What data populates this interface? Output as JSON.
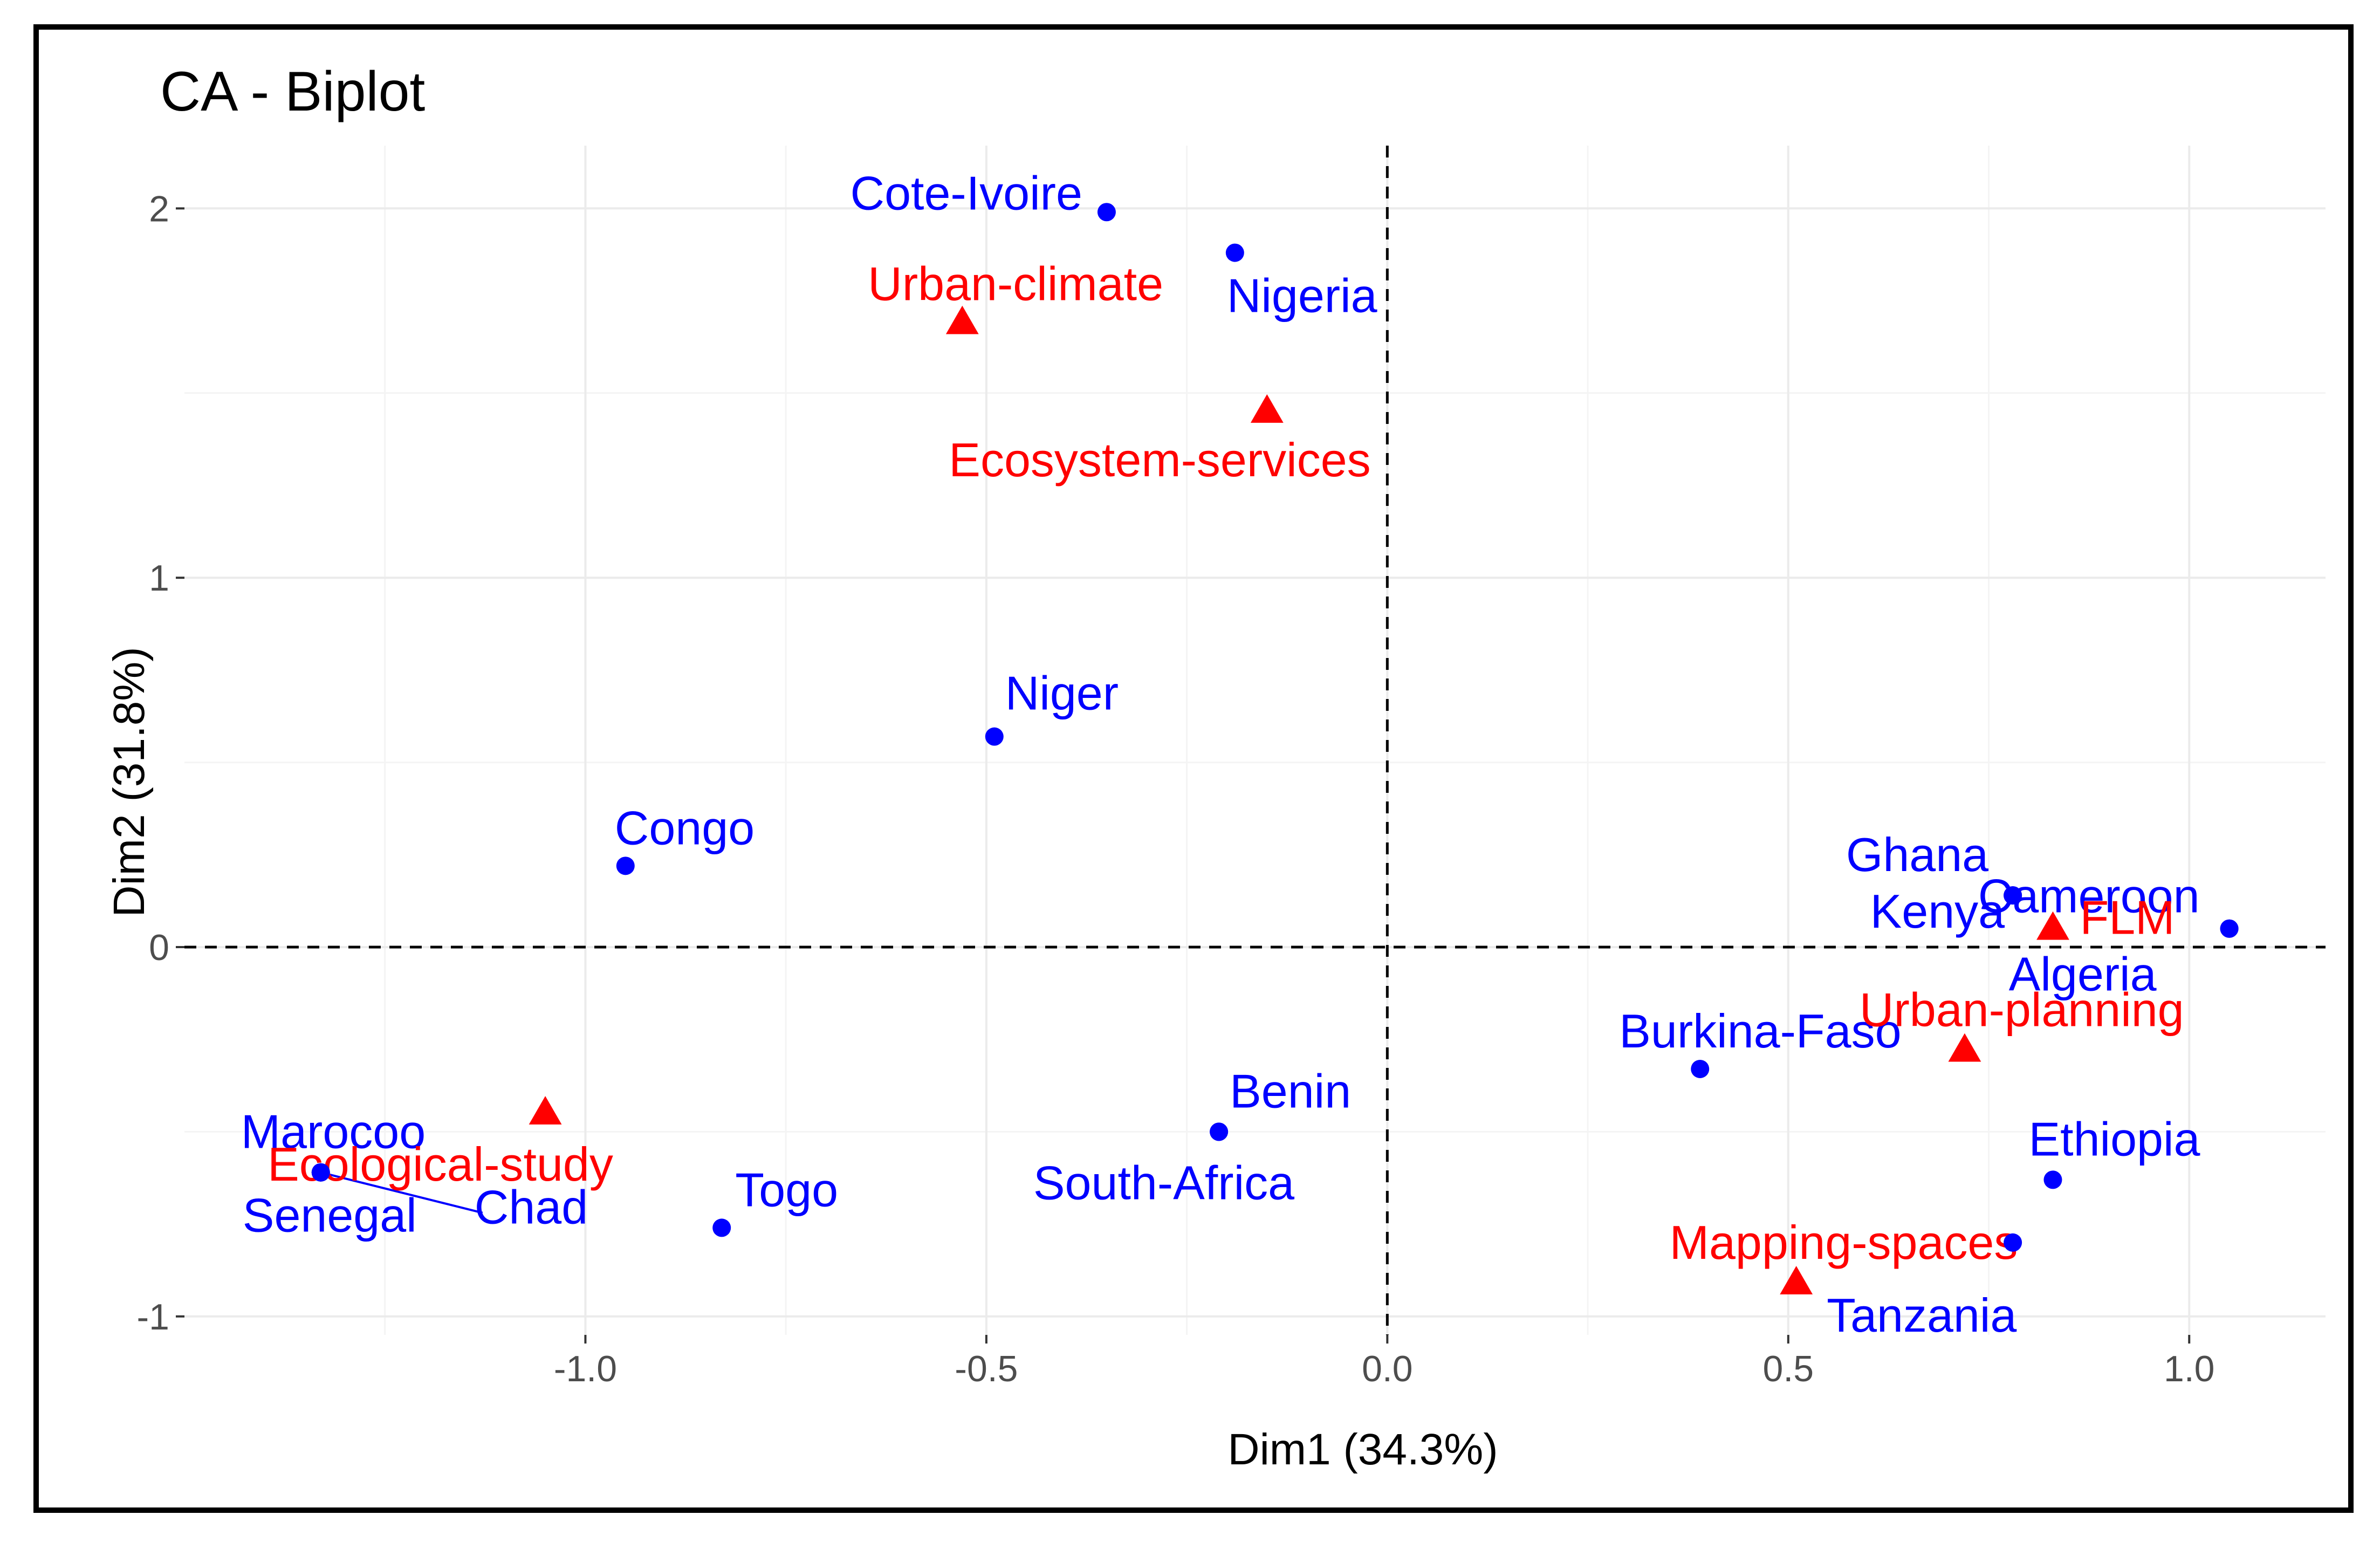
{
  "chart_data": {
    "type": "scatter",
    "title": "CA - Biplot",
    "xlabel": "Dim1 (34.3%)",
    "ylabel": "Dim2 (31.8%)",
    "xlim": [
      -1.5,
      1.17
    ],
    "ylim": [
      -1.05,
      2.17
    ],
    "xticks": [
      -1.0,
      -0.5,
      0.0,
      0.5,
      1.0
    ],
    "xtick_labels": [
      "-1.0",
      "-0.5",
      "0.0",
      "0.5",
      "1.0"
    ],
    "yticks": [
      -1,
      0,
      1,
      2
    ],
    "ytick_labels": [
      "-1",
      "0",
      "1",
      "2"
    ],
    "reference_lines": {
      "x": 0,
      "y": 0
    },
    "colors": {
      "rows": "#0000ff",
      "columns": "#ff0000"
    },
    "series": [
      {
        "name": "rows",
        "marker": "circle",
        "points": [
          {
            "label": "Cote-Ivoire",
            "x": -0.35,
            "y": 1.99
          },
          {
            "label": "Nigeria",
            "x": -0.19,
            "y": 1.88
          },
          {
            "label": "Niger",
            "x": -0.49,
            "y": 0.57
          },
          {
            "label": "Congo",
            "x": -0.95,
            "y": 0.22
          },
          {
            "label": "Ghana",
            "x": 0.78,
            "y": 0.14
          },
          {
            "label": "Cameroon",
            "x": 1.05,
            "y": 0.05
          },
          {
            "label": "Kenya",
            "x": 0.78,
            "y": 0.14
          },
          {
            "label": "Algeria",
            "x": 1.05,
            "y": 0.05
          },
          {
            "label": "Burkina-Faso",
            "x": 0.39,
            "y": -0.33
          },
          {
            "label": "Benin",
            "x": -0.21,
            "y": -0.5
          },
          {
            "label": "South-Africa",
            "x": -0.21,
            "y": -0.5
          },
          {
            "label": "Ethiopia",
            "x": 0.83,
            "y": -0.63
          },
          {
            "label": "Tanzania",
            "x": 0.78,
            "y": -0.8
          },
          {
            "label": "Marocoo",
            "x": -1.33,
            "y": -0.61
          },
          {
            "label": "Senegal",
            "x": -1.33,
            "y": -0.61
          },
          {
            "label": "Chad",
            "x": -1.33,
            "y": -0.61
          },
          {
            "label": "Togo",
            "x": -0.83,
            "y": -0.76
          }
        ]
      },
      {
        "name": "columns",
        "marker": "triangle",
        "points": [
          {
            "label": "Urban-climate",
            "x": -0.53,
            "y": 1.69
          },
          {
            "label": "Ecosystem-services",
            "x": -0.15,
            "y": 1.45
          },
          {
            "label": "FLM",
            "x": 0.83,
            "y": 0.05
          },
          {
            "label": "Urban-planning",
            "x": 0.72,
            "y": -0.28
          },
          {
            "label": "Ecological-study",
            "x": -1.05,
            "y": -0.45
          },
          {
            "label": "Mapping-spaces",
            "x": 0.51,
            "y": -0.91
          }
        ]
      }
    ]
  }
}
